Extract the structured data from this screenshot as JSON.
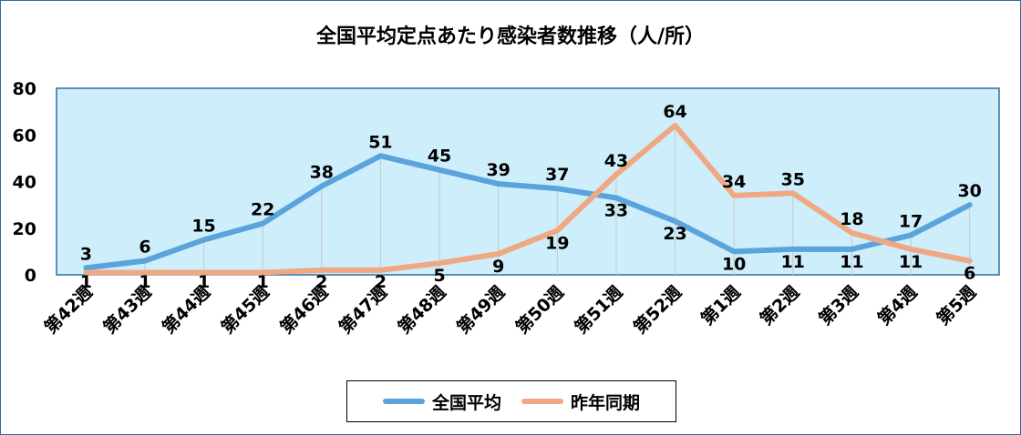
{
  "chart_data": {
    "type": "line",
    "title": "全国平均定点あたり感染者数推移（人/所）",
    "categories": [
      "第42週",
      "第43週",
      "第44週",
      "第45週",
      "第46週",
      "第47週",
      "第48週",
      "第49週",
      "第50週",
      "第51週",
      "第52週",
      "第1週",
      "第2週",
      "第3週",
      "第4週",
      "第5週"
    ],
    "series": [
      {
        "name": "全国平均",
        "color": "#5aa3dc",
        "values": [
          3,
          6,
          15,
          22,
          38,
          51,
          45,
          39,
          37,
          33,
          23,
          10,
          11,
          11,
          17,
          30
        ]
      },
      {
        "name": "昨年同期",
        "color": "#f0a882",
        "values": [
          1,
          1,
          1,
          1,
          2,
          2,
          5,
          9,
          19,
          43,
          64,
          34,
          35,
          18,
          11,
          6
        ]
      }
    ],
    "ylim": [
      0,
      80
    ],
    "yticks": [
      "0",
      "20",
      "40",
      "60",
      "80"
    ],
    "grid": "vertical drop lines",
    "legend": "bottom",
    "plot_background": "#cdeefa"
  }
}
